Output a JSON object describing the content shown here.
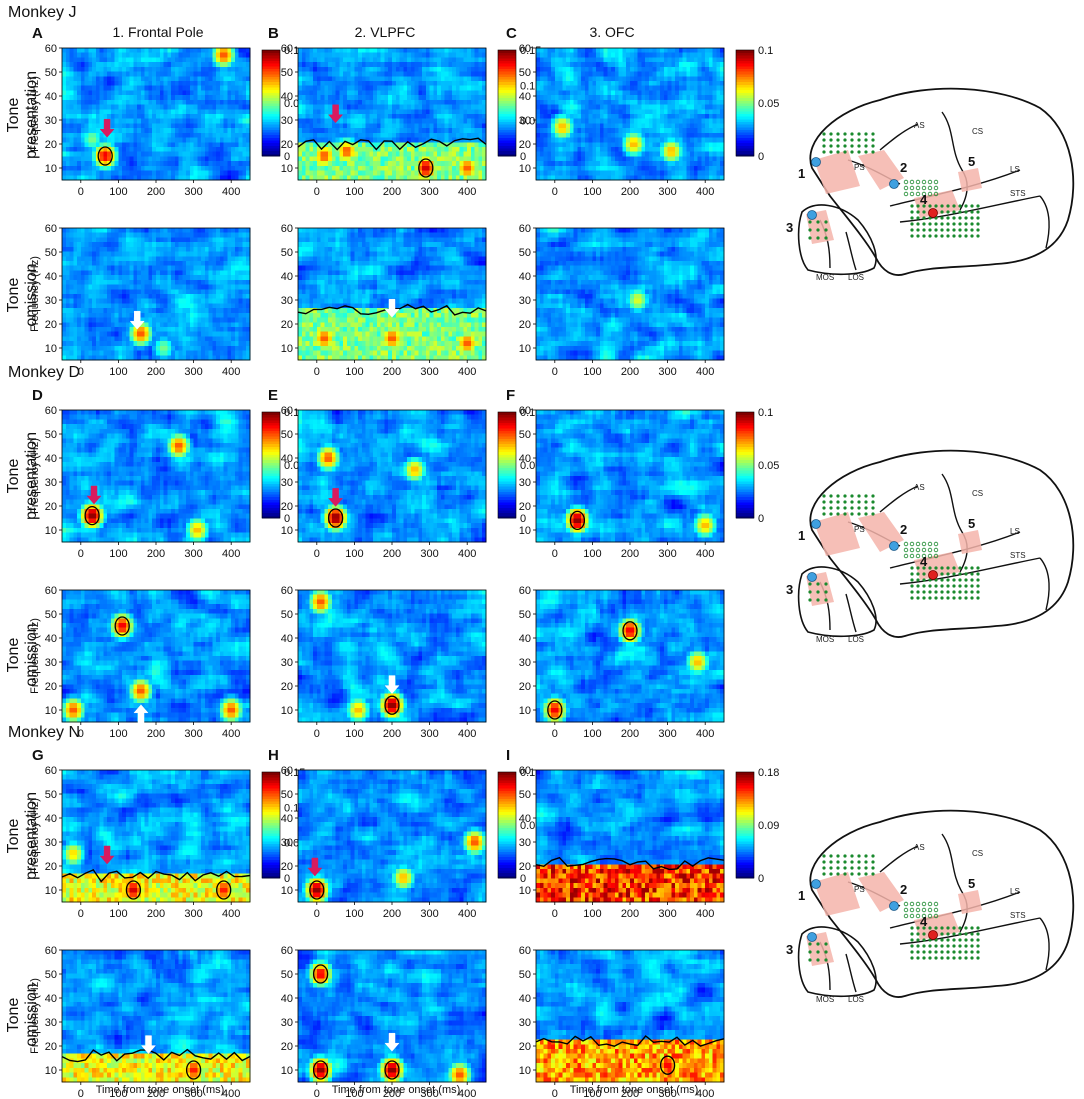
{
  "column_titles": [
    "1. Frontal Pole",
    "2. VLPFC",
    "3. OFC"
  ],
  "row_titles": {
    "presentation_1": "Tone",
    "presentation_2": "presentation",
    "omission_1": "Tone",
    "omission_2": "omission"
  },
  "y_axis_label": "Frequency (Hz)",
  "x_axis_label": "Time from tone onset (ms)",
  "monkeys": [
    {
      "name": "Monkey J",
      "letters": [
        "A",
        "B",
        "C"
      ]
    },
    {
      "name": "Monkey D",
      "letters": [
        "D",
        "E",
        "F"
      ]
    },
    {
      "name": "Monkey N",
      "letters": [
        "G",
        "H",
        "I"
      ]
    }
  ],
  "brain_labels": {
    "numbers": [
      "1",
      "2",
      "3",
      "4",
      "5"
    ],
    "sulci": [
      "CS",
      "AS",
      "PS",
      "LS",
      "STS",
      "MOS",
      "LOS"
    ]
  },
  "colors": {
    "colormap": [
      "#00008f",
      "#0000ff",
      "#0080ff",
      "#00ffff",
      "#80ff80",
      "#ffff00",
      "#ff8000",
      "#ff0000",
      "#800000"
    ],
    "presentation_arrow": "#d81b60",
    "omission_arrow": "#ffffff",
    "electrode_green": "#1a8a2e",
    "highlight_pink": "#f4b4aa",
    "site_blue": "#3fa0e0",
    "site_red": "#e02020"
  },
  "chart_data": [
    {
      "panel": "A",
      "monkey": "Monkey J",
      "region": "1. Frontal Pole",
      "type": "heatmap",
      "condition": "Tone presentation",
      "x_ticks": [
        0,
        100,
        200,
        300,
        400
      ],
      "xlim": [
        -50,
        450
      ],
      "y_ticks": [
        10,
        20,
        30,
        40,
        50,
        60
      ],
      "ylim": [
        5,
        60
      ],
      "colorbar": {
        "min": 0,
        "max": 0.1,
        "ticks": [
          "0",
          "0.05",
          "0.1"
        ]
      },
      "hotspots": [
        {
          "time": 65,
          "freq": 15,
          "value": 0.09
        },
        {
          "time": 380,
          "freq": 57,
          "value": 0.08
        },
        {
          "time": 30,
          "freq": 22,
          "value": 0.05
        }
      ],
      "arrow": {
        "time": 70,
        "freq": 27
      }
    },
    {
      "panel": "B",
      "monkey": "Monkey J",
      "region": "2. VLPFC",
      "type": "heatmap",
      "condition": "Tone presentation",
      "x_ticks": [
        0,
        100,
        200,
        300,
        400
      ],
      "xlim": [
        -50,
        450
      ],
      "y_ticks": [
        10,
        20,
        30,
        40,
        50,
        60
      ],
      "ylim": [
        5,
        60
      ],
      "colorbar": {
        "min": 0,
        "max": 0.15,
        "ticks": [
          "0",
          "0.05",
          "0.1",
          "0.15"
        ]
      },
      "hotspots": [
        {
          "time": 20,
          "freq": 15,
          "value": 0.12
        },
        {
          "time": 80,
          "freq": 17,
          "value": 0.12
        },
        {
          "time": 290,
          "freq": 10,
          "value": 0.14
        },
        {
          "time": 400,
          "freq": 10,
          "value": 0.12
        }
      ],
      "band": {
        "top": 20,
        "value": 0.08
      },
      "arrow": {
        "time": 50,
        "freq": 33
      }
    },
    {
      "panel": "C",
      "monkey": "Monkey J",
      "region": "3. OFC",
      "type": "heatmap",
      "condition": "Tone presentation",
      "x_ticks": [
        0,
        100,
        200,
        300,
        400
      ],
      "xlim": [
        -50,
        450
      ],
      "y_ticks": [
        10,
        20,
        30,
        40,
        50,
        60
      ],
      "ylim": [
        5,
        60
      ],
      "colorbar": {
        "min": 0,
        "max": 0.1,
        "ticks": [
          "0",
          "0.05",
          "0.1"
        ]
      },
      "hotspots": [
        {
          "time": 20,
          "freq": 27,
          "value": 0.07
        },
        {
          "time": 210,
          "freq": 20,
          "value": 0.07
        },
        {
          "time": 310,
          "freq": 17,
          "value": 0.07
        }
      ]
    },
    {
      "panel": "A",
      "monkey": "Monkey J",
      "region": "1. Frontal Pole",
      "type": "heatmap",
      "condition": "Tone omission",
      "x_ticks": [
        0,
        100,
        200,
        300,
        400
      ],
      "xlim": [
        -50,
        450
      ],
      "y_ticks": [
        10,
        20,
        30,
        40,
        50,
        60
      ],
      "ylim": [
        5,
        60
      ],
      "hotspots": [
        {
          "time": 160,
          "freq": 16,
          "value": 0.08
        },
        {
          "time": 220,
          "freq": 10,
          "value": 0.05
        }
      ],
      "arrow": {
        "time": 150,
        "freq": 22
      }
    },
    {
      "panel": "B",
      "monkey": "Monkey J",
      "region": "2. VLPFC",
      "type": "heatmap",
      "condition": "Tone omission",
      "x_ticks": [
        0,
        100,
        200,
        300,
        400
      ],
      "xlim": [
        -50,
        450
      ],
      "y_ticks": [
        10,
        20,
        30,
        40,
        50,
        60
      ],
      "ylim": [
        5,
        60
      ],
      "hotspots": [
        {
          "time": 20,
          "freq": 14,
          "value": 0.12
        },
        {
          "time": 200,
          "freq": 14,
          "value": 0.12
        },
        {
          "time": 400,
          "freq": 12,
          "value": 0.12
        }
      ],
      "band": {
        "top": 26,
        "value": 0.08
      },
      "arrow": {
        "time": 200,
        "freq": 27
      }
    },
    {
      "panel": "C",
      "monkey": "Monkey J",
      "region": "3. OFC",
      "type": "heatmap",
      "condition": "Tone omission",
      "x_ticks": [
        0,
        100,
        200,
        300,
        400
      ],
      "xlim": [
        -50,
        450
      ],
      "y_ticks": [
        10,
        20,
        30,
        40,
        50,
        60
      ],
      "ylim": [
        5,
        60
      ],
      "hotspots": [
        {
          "time": 220,
          "freq": 30,
          "value": 0.06
        }
      ]
    },
    {
      "panel": "D",
      "monkey": "Monkey D",
      "region": "1. Frontal Pole",
      "type": "heatmap",
      "condition": "Tone presentation",
      "x_ticks": [
        0,
        100,
        200,
        300,
        400
      ],
      "xlim": [
        -50,
        450
      ],
      "y_ticks": [
        10,
        20,
        30,
        40,
        50,
        60
      ],
      "ylim": [
        5,
        60
      ],
      "colorbar": {
        "min": 0,
        "max": 0.1,
        "ticks": [
          "0",
          "0.05",
          "0.1"
        ]
      },
      "hotspots": [
        {
          "time": 30,
          "freq": 16,
          "value": 0.1
        },
        {
          "time": 260,
          "freq": 45,
          "value": 0.08
        },
        {
          "time": 310,
          "freq": 10,
          "value": 0.07
        }
      ],
      "arrow": {
        "time": 35,
        "freq": 25
      }
    },
    {
      "panel": "E",
      "monkey": "Monkey D",
      "region": "2. VLPFC",
      "type": "heatmap",
      "condition": "Tone presentation",
      "x_ticks": [
        0,
        100,
        200,
        300,
        400
      ],
      "xlim": [
        -50,
        450
      ],
      "y_ticks": [
        10,
        20,
        30,
        40,
        50,
        60
      ],
      "ylim": [
        5,
        60
      ],
      "colorbar": {
        "min": 0,
        "max": 0.1,
        "ticks": [
          "0",
          "0.05",
          "0.1"
        ]
      },
      "hotspots": [
        {
          "time": 50,
          "freq": 15,
          "value": 0.1
        },
        {
          "time": 30,
          "freq": 40,
          "value": 0.08
        },
        {
          "time": 260,
          "freq": 35,
          "value": 0.07
        }
      ],
      "arrow": {
        "time": 50,
        "freq": 24
      }
    },
    {
      "panel": "F",
      "monkey": "Monkey D",
      "region": "3. OFC",
      "type": "heatmap",
      "condition": "Tone presentation",
      "x_ticks": [
        0,
        100,
        200,
        300,
        400
      ],
      "xlim": [
        -50,
        450
      ],
      "y_ticks": [
        10,
        20,
        30,
        40,
        50,
        60
      ],
      "ylim": [
        5,
        60
      ],
      "colorbar": {
        "min": 0,
        "max": 0.1,
        "ticks": [
          "0",
          "0.05",
          "0.1"
        ]
      },
      "hotspots": [
        {
          "time": 60,
          "freq": 14,
          "value": 0.1
        },
        {
          "time": 400,
          "freq": 12,
          "value": 0.07
        }
      ]
    },
    {
      "panel": "D",
      "monkey": "Monkey D",
      "region": "1. Frontal Pole",
      "type": "heatmap",
      "condition": "Tone omission",
      "x_ticks": [
        0,
        100,
        200,
        300,
        400
      ],
      "xlim": [
        -50,
        450
      ],
      "y_ticks": [
        10,
        20,
        30,
        40,
        50,
        60
      ],
      "ylim": [
        5,
        60
      ],
      "hotspots": [
        {
          "time": 110,
          "freq": 45,
          "value": 0.09
        },
        {
          "time": 160,
          "freq": 18,
          "value": 0.08
        },
        {
          "time": -20,
          "freq": 10,
          "value": 0.08
        },
        {
          "time": 400,
          "freq": 10,
          "value": 0.08
        }
      ],
      "arrow": {
        "time": 160,
        "freq": 8
      }
    },
    {
      "panel": "E",
      "monkey": "Monkey D",
      "region": "2. VLPFC",
      "type": "heatmap",
      "condition": "Tone omission",
      "x_ticks": [
        0,
        100,
        200,
        300,
        400
      ],
      "xlim": [
        -50,
        450
      ],
      "y_ticks": [
        10,
        20,
        30,
        40,
        50,
        60
      ],
      "ylim": [
        5,
        60
      ],
      "hotspots": [
        {
          "time": 200,
          "freq": 12,
          "value": 0.1
        },
        {
          "time": 10,
          "freq": 55,
          "value": 0.08
        },
        {
          "time": 110,
          "freq": 10,
          "value": 0.07
        }
      ],
      "arrow": {
        "time": 200,
        "freq": 21
      }
    },
    {
      "panel": "F",
      "monkey": "Monkey D",
      "region": "3. OFC",
      "type": "heatmap",
      "condition": "Tone omission",
      "x_ticks": [
        0,
        100,
        200,
        300,
        400
      ],
      "xlim": [
        -50,
        450
      ],
      "y_ticks": [
        10,
        20,
        30,
        40,
        50,
        60
      ],
      "ylim": [
        5,
        60
      ],
      "hotspots": [
        {
          "time": 0,
          "freq": 10,
          "value": 0.09
        },
        {
          "time": 200,
          "freq": 43,
          "value": 0.09
        },
        {
          "time": 380,
          "freq": 30,
          "value": 0.07
        }
      ]
    },
    {
      "panel": "G",
      "monkey": "Monkey N",
      "region": "1. Frontal Pole",
      "type": "heatmap",
      "condition": "Tone presentation",
      "x_ticks": [
        0,
        100,
        200,
        300,
        400
      ],
      "xlim": [
        -50,
        450
      ],
      "y_ticks": [
        10,
        20,
        30,
        40,
        50,
        60
      ],
      "ylim": [
        5,
        60
      ],
      "colorbar": {
        "min": 0,
        "max": 0.15,
        "ticks": [
          "0",
          "0.05",
          "0.1",
          "0.15"
        ]
      },
      "hotspots": [
        {
          "time": 140,
          "freq": 10,
          "value": 0.14
        },
        {
          "time": -20,
          "freq": 25,
          "value": 0.1
        },
        {
          "time": 380,
          "freq": 10,
          "value": 0.13
        }
      ],
      "band": {
        "top": 16,
        "value": 0.1
      },
      "arrow": {
        "time": 70,
        "freq": 25
      }
    },
    {
      "panel": "H",
      "monkey": "Monkey N",
      "region": "2. VLPFC",
      "type": "heatmap",
      "condition": "Tone presentation",
      "x_ticks": [
        0,
        100,
        200,
        300,
        400
      ],
      "xlim": [
        -50,
        450
      ],
      "y_ticks": [
        10,
        20,
        30,
        40,
        50,
        60
      ],
      "ylim": [
        5,
        60
      ],
      "colorbar": {
        "min": 0,
        "max": 0.1,
        "ticks": [
          "0",
          "0.05",
          "0.1"
        ]
      },
      "hotspots": [
        {
          "time": 0,
          "freq": 10,
          "value": 0.1
        },
        {
          "time": 420,
          "freq": 30,
          "value": 0.08
        },
        {
          "time": 230,
          "freq": 15,
          "value": 0.07
        }
      ],
      "arrow": {
        "time": -5,
        "freq": 20
      }
    },
    {
      "panel": "I",
      "monkey": "Monkey N",
      "region": "3. OFC",
      "type": "heatmap",
      "condition": "Tone presentation",
      "x_ticks": [
        0,
        100,
        200,
        300,
        400
      ],
      "xlim": [
        -50,
        450
      ],
      "y_ticks": [
        10,
        20,
        30,
        40,
        50,
        60
      ],
      "ylim": [
        5,
        60
      ],
      "colorbar": {
        "min": 0,
        "max": 0.18,
        "ticks": [
          "0",
          "0.09",
          "0.18"
        ]
      },
      "hotspots": [],
      "band": {
        "top": 21,
        "value": 0.16
      }
    },
    {
      "panel": "G",
      "monkey": "Monkey N",
      "region": "1. Frontal Pole",
      "type": "heatmap",
      "condition": "Tone omission",
      "x_ticks": [
        0,
        100,
        200,
        300,
        400
      ],
      "xlim": [
        -50,
        450
      ],
      "y_ticks": [
        10,
        20,
        30,
        40,
        50,
        60
      ],
      "ylim": [
        5,
        60
      ],
      "hotspots": [
        {
          "time": 300,
          "freq": 10,
          "value": 0.13
        }
      ],
      "band": {
        "top": 16,
        "value": 0.1
      },
      "arrow": {
        "time": 180,
        "freq": 21
      }
    },
    {
      "panel": "H",
      "monkey": "Monkey N",
      "region": "2. VLPFC",
      "type": "heatmap",
      "condition": "Tone omission",
      "x_ticks": [
        0,
        100,
        200,
        300,
        400
      ],
      "xlim": [
        -50,
        450
      ],
      "y_ticks": [
        10,
        20,
        30,
        40,
        50,
        60
      ],
      "ylim": [
        5,
        60
      ],
      "hotspots": [
        {
          "time": 10,
          "freq": 10,
          "value": 0.1
        },
        {
          "time": 200,
          "freq": 10,
          "value": 0.1
        },
        {
          "time": 10,
          "freq": 50,
          "value": 0.09
        },
        {
          "time": 380,
          "freq": 8,
          "value": 0.08
        }
      ],
      "arrow": {
        "time": 200,
        "freq": 22
      }
    },
    {
      "panel": "I",
      "monkey": "Monkey N",
      "region": "3. OFC",
      "type": "heatmap",
      "condition": "Tone omission",
      "x_ticks": [
        0,
        100,
        200,
        300,
        400
      ],
      "xlim": [
        -50,
        450
      ],
      "y_ticks": [
        10,
        20,
        30,
        40,
        50,
        60
      ],
      "ylim": [
        5,
        60
      ],
      "hotspots": [
        {
          "time": 300,
          "freq": 12,
          "value": 0.16
        }
      ],
      "band": {
        "top": 22,
        "value": 0.14
      }
    }
  ]
}
